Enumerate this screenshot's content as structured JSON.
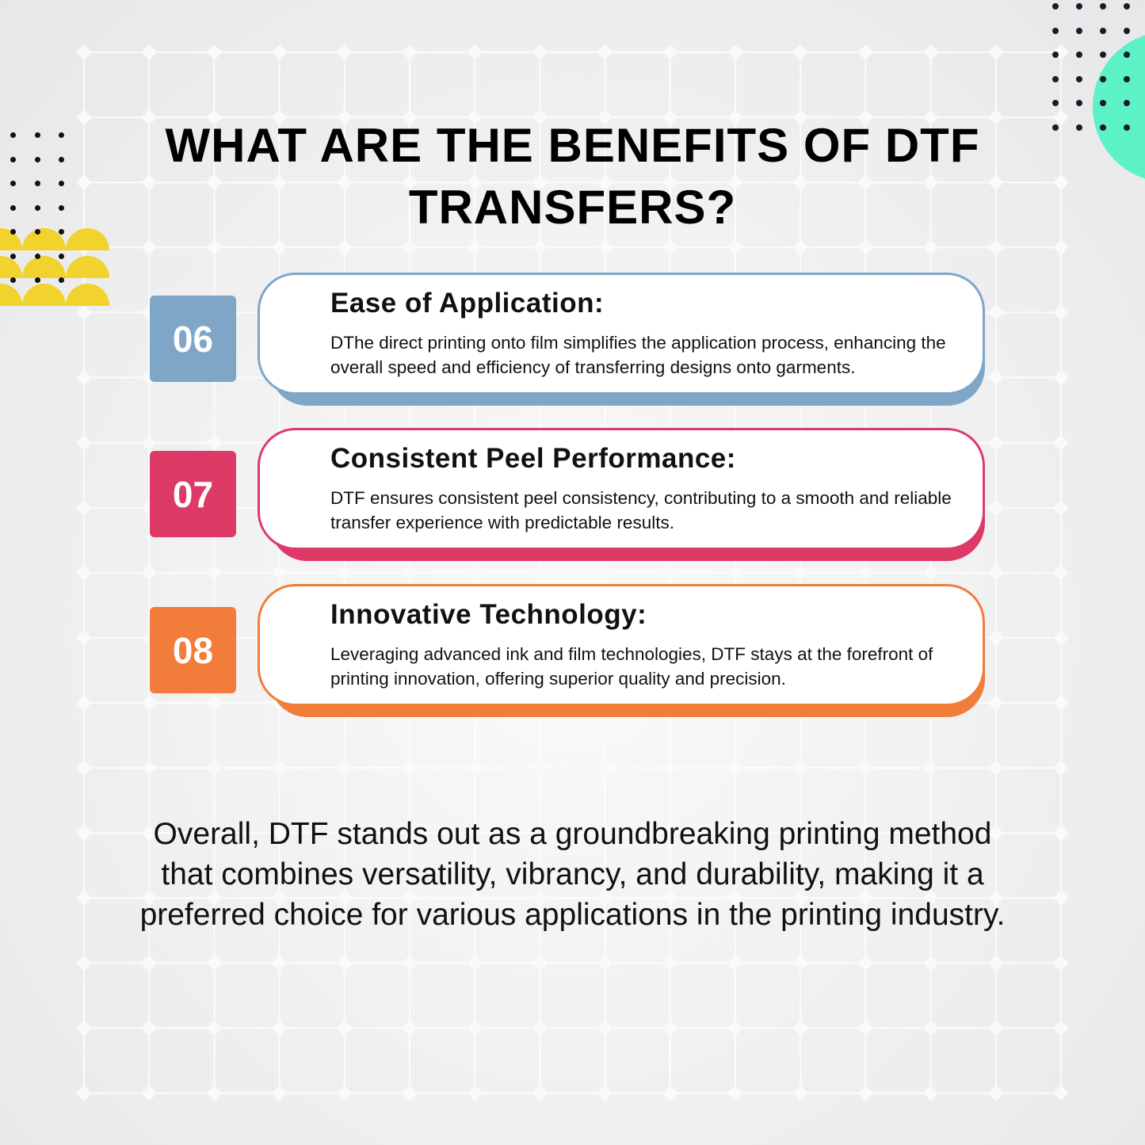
{
  "title": "WHAT ARE THE BENEFITS OF DTF TRANSFERS?",
  "colors": {
    "blue": "#7fa6c6",
    "pink": "#dd3a68",
    "orange": "#f27c39",
    "yellow": "#f2d22d",
    "mint": "#5cf2c6"
  },
  "benefits": [
    {
      "number": "06",
      "heading": "Ease of Application:",
      "text": "DThe direct printing onto film simplifies the application process, enhancing the overall speed and efficiency of transferring designs onto garments.",
      "color": "#7fa6c6"
    },
    {
      "number": "07",
      "heading": "Consistent Peel Performance:",
      "text": "DTF ensures consistent peel consistency, contributing to a smooth and reliable transfer experience with predictable results.",
      "color": "#dd3a68"
    },
    {
      "number": "08",
      "heading": "Innovative Technology:",
      "text": "Leveraging advanced ink and film technologies, DTF stays at the forefront of printing innovation, offering superior quality and precision.",
      "color": "#f27c39"
    }
  ],
  "summary": "Overall, DTF stands out as a groundbreaking printing method that combines versatility, vibrancy, and durability, making it a preferred choice for various applications in the printing industry."
}
